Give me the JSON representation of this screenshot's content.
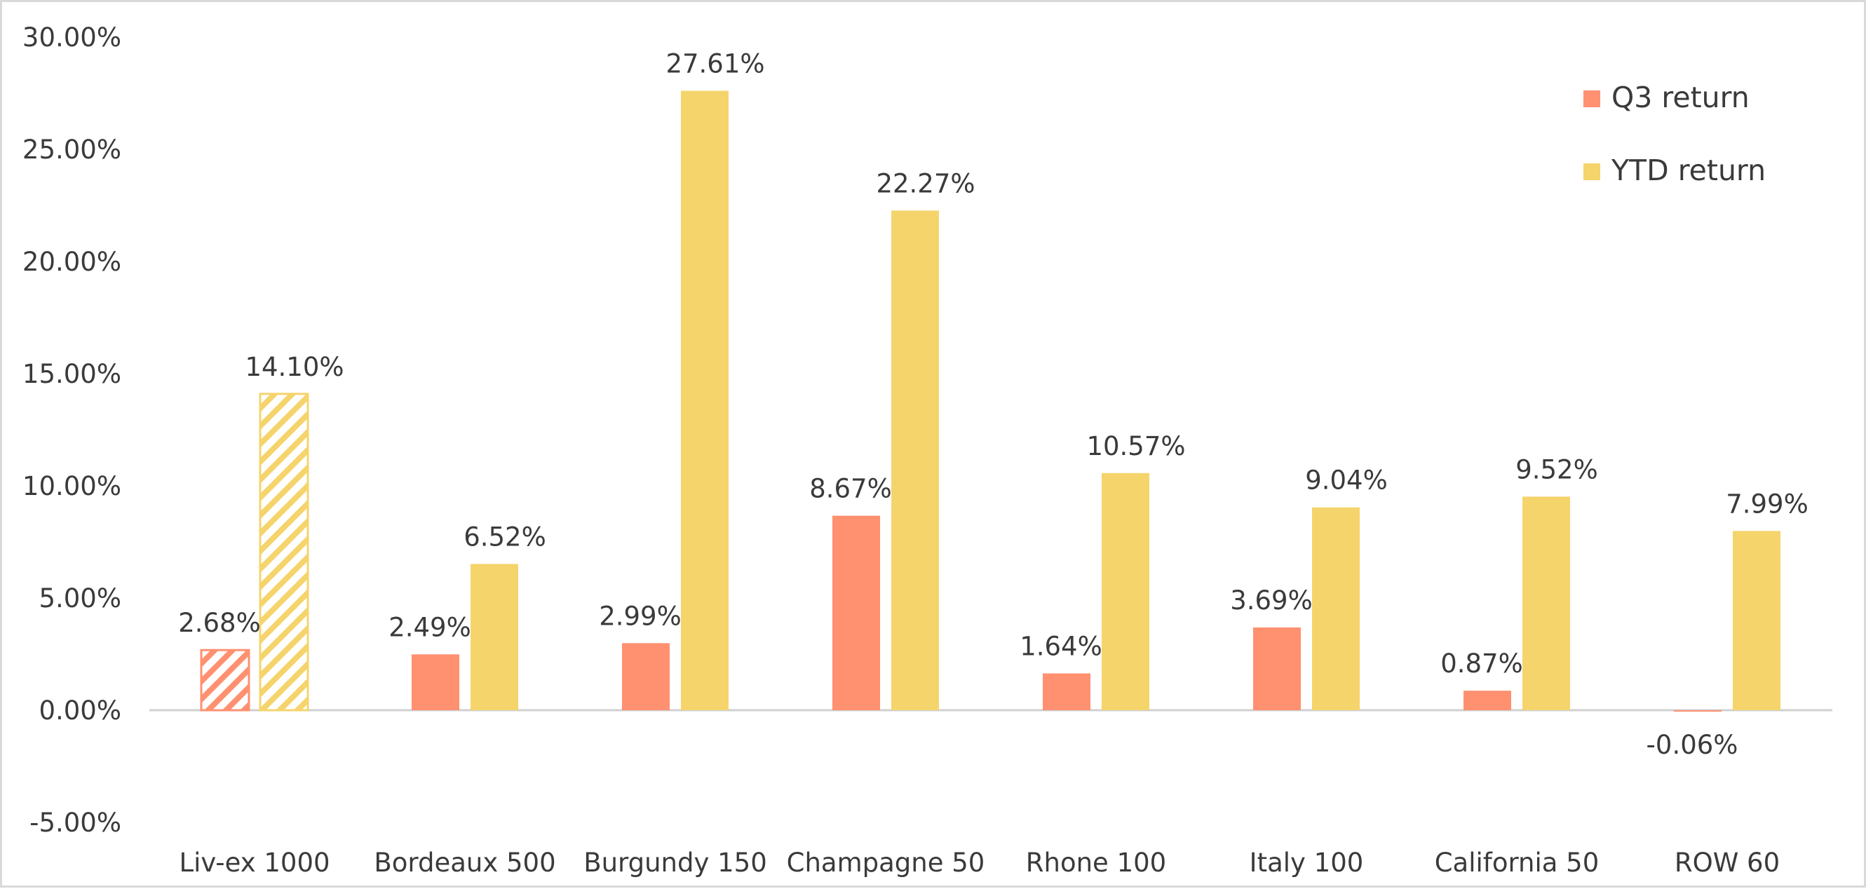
{
  "chart_data": {
    "type": "bar",
    "title": "",
    "xlabel": "",
    "ylabel": "",
    "ylim": [
      -5,
      30
    ],
    "yticks": [
      "30.00%",
      "25.00%",
      "20.00%",
      "15.00%",
      "10.00%",
      "5.00%",
      "0.00%",
      "-5.00%"
    ],
    "ytick_values": [
      30,
      25,
      20,
      15,
      10,
      5,
      0,
      -5
    ],
    "grid": false,
    "legend_position": "top-right",
    "categories": [
      "Liv-ex 1000",
      "Bordeaux 500",
      "Burgundy 150",
      "Champagne 50",
      "Rhone 100",
      "Italy 100",
      "California 50",
      "ROW 60"
    ],
    "series": [
      {
        "name": "Q3 return",
        "color": "#ff9070",
        "values": [
          2.68,
          2.49,
          2.99,
          8.67,
          1.64,
          3.69,
          0.87,
          -0.06
        ],
        "labels": [
          "2.68%",
          "2.49%",
          "2.99%",
          "8.67%",
          "1.64%",
          "3.69%",
          "0.87%",
          "-0.06%"
        ]
      },
      {
        "name": "YTD return",
        "color": "#f5d46c",
        "values": [
          14.1,
          6.52,
          27.61,
          22.27,
          10.57,
          9.04,
          9.52,
          7.99
        ],
        "labels": [
          "14.10%",
          "6.52%",
          "27.61%",
          "22.27%",
          "10.57%",
          "9.04%",
          "9.52%",
          "7.99%"
        ]
      }
    ],
    "hatched_categories": [
      "Liv-ex 1000"
    ]
  }
}
